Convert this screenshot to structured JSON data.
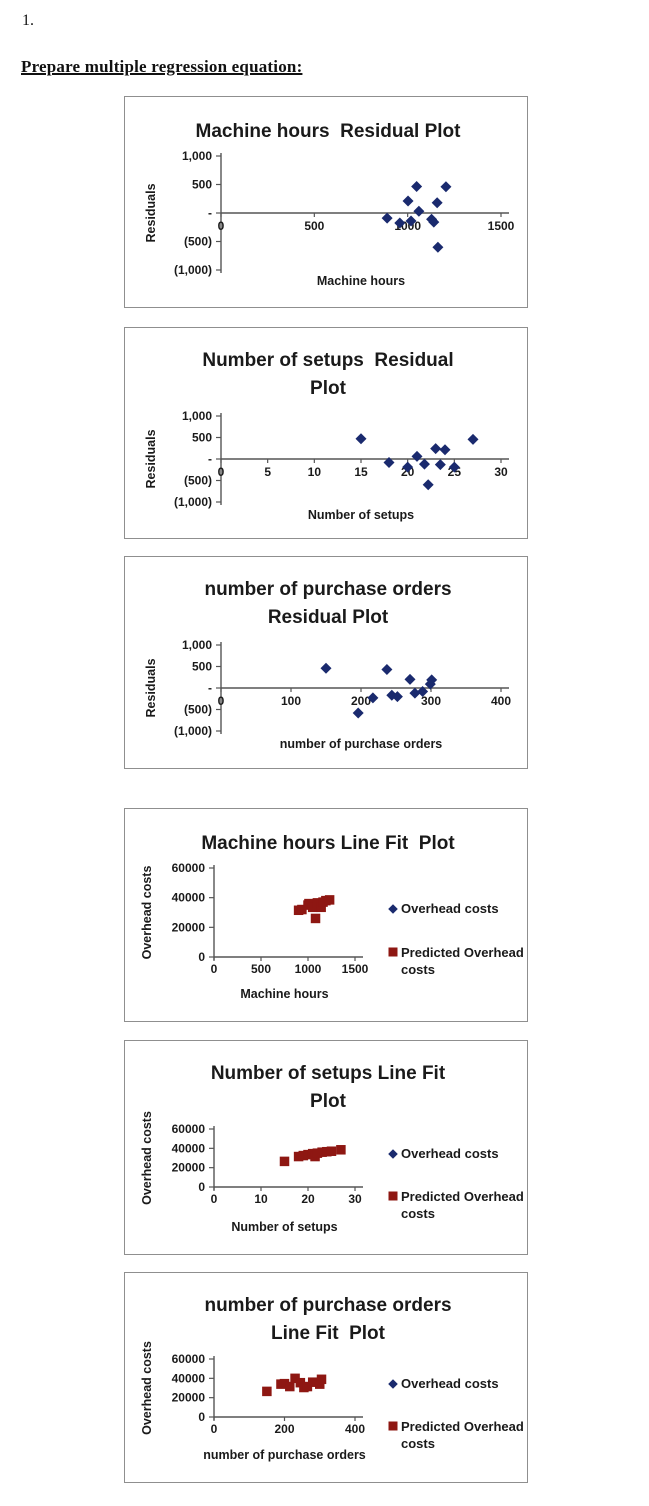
{
  "page": {
    "item_number": "1.",
    "heading": "Prepare multiple regression equation:"
  },
  "colors": {
    "overhead_marker": "#1A2A6E",
    "predicted_marker": "#8E1712",
    "axis": "#555555",
    "chart_border": "#8f8f8f",
    "text": "#1a1a1a"
  },
  "chart_data": [
    {
      "type": "scatter",
      "title_lines": [
        "Machine hours  Residual Plot"
      ],
      "xlabel": "Machine hours",
      "ylabel": "Residuals",
      "xlim": [
        0,
        1500
      ],
      "ylim": [
        -1000,
        1000
      ],
      "grid": false,
      "xticks": [
        {
          "v": 0,
          "label": "0"
        },
        {
          "v": 500,
          "label": "500"
        },
        {
          "v": 1000,
          "label": "1000"
        },
        {
          "v": 1500,
          "label": "1500"
        }
      ],
      "yticks": [
        {
          "v": 1000,
          "label": "1,000"
        },
        {
          "v": 500,
          "label": "500"
        },
        {
          "v": 0,
          "label": "-"
        },
        {
          "v": -500,
          "label": "(500)"
        },
        {
          "v": -1000,
          "label": "(1,000)"
        }
      ],
      "series": [
        {
          "name": "Residuals",
          "marker": "diamond",
          "color": "#1A2A6E",
          "points": [
            [
              890,
              -90
            ],
            [
              958,
              -175
            ],
            [
              1002,
              210
            ],
            [
              1018,
              -140
            ],
            [
              1048,
              465
            ],
            [
              1060,
              30
            ],
            [
              1128,
              -110
            ],
            [
              1140,
              -160
            ],
            [
              1158,
              180
            ],
            [
              1162,
              -600
            ],
            [
              1205,
              460
            ]
          ]
        }
      ],
      "legend": null
    },
    {
      "type": "scatter",
      "title_lines": [
        "Number of setups  Residual",
        "Plot"
      ],
      "xlabel": "Number of setups",
      "ylabel": "Residuals",
      "xlim": [
        0,
        30
      ],
      "ylim": [
        -1000,
        1000
      ],
      "grid": false,
      "xticks": [
        {
          "v": 0,
          "label": "0"
        },
        {
          "v": 5,
          "label": "5"
        },
        {
          "v": 10,
          "label": "10"
        },
        {
          "v": 15,
          "label": "15"
        },
        {
          "v": 20,
          "label": "20"
        },
        {
          "v": 25,
          "label": "25"
        },
        {
          "v": 30,
          "label": "30"
        }
      ],
      "yticks": [
        {
          "v": 1000,
          "label": "1,000"
        },
        {
          "v": 500,
          "label": "500"
        },
        {
          "v": 0,
          "label": "-"
        },
        {
          "v": -500,
          "label": "(500)"
        },
        {
          "v": -1000,
          "label": "(1,000)"
        }
      ],
      "series": [
        {
          "name": "Residuals",
          "marker": "diamond",
          "color": "#1A2A6E",
          "points": [
            [
              15,
              470
            ],
            [
              18,
              -80
            ],
            [
              20,
              -190
            ],
            [
              21,
              60
            ],
            [
              21.8,
              -120
            ],
            [
              22.2,
              -600
            ],
            [
              23,
              240
            ],
            [
              23.5,
              -130
            ],
            [
              24,
              215
            ],
            [
              25,
              -190
            ],
            [
              27,
              455
            ]
          ]
        }
      ],
      "legend": null
    },
    {
      "type": "scatter",
      "title_lines": [
        "number of purchase orders",
        "Residual Plot"
      ],
      "xlabel": "number of purchase orders",
      "ylabel": "Residuals",
      "xlim": [
        0,
        400
      ],
      "ylim": [
        -1000,
        1000
      ],
      "grid": false,
      "xticks": [
        {
          "v": 0,
          "label": "0"
        },
        {
          "v": 100,
          "label": "100"
        },
        {
          "v": 200,
          "label": "200"
        },
        {
          "v": 300,
          "label": "300"
        },
        {
          "v": 400,
          "label": "400"
        }
      ],
      "yticks": [
        {
          "v": 1000,
          "label": "1,000"
        },
        {
          "v": 500,
          "label": "500"
        },
        {
          "v": 0,
          "label": "-"
        },
        {
          "v": -500,
          "label": "(500)"
        },
        {
          "v": -1000,
          "label": "(1,000)"
        }
      ],
      "series": [
        {
          "name": "Residuals",
          "marker": "diamond",
          "color": "#1A2A6E",
          "points": [
            [
              150,
              460
            ],
            [
              196,
              -580
            ],
            [
              217,
              -230
            ],
            [
              237,
              430
            ],
            [
              244,
              -170
            ],
            [
              252,
              -200
            ],
            [
              270,
              200
            ],
            [
              277,
              -120
            ],
            [
              288,
              -80
            ],
            [
              299,
              90
            ],
            [
              301,
              190
            ]
          ]
        }
      ],
      "legend": null
    },
    {
      "type": "scatter",
      "title_lines": [
        "Machine hours Line Fit  Plot"
      ],
      "xlabel": "Machine hours",
      "ylabel": "Overhead costs",
      "xlim": [
        0,
        1500
      ],
      "ylim": [
        0,
        60000
      ],
      "grid": false,
      "xticks": [
        {
          "v": 0,
          "label": "0"
        },
        {
          "v": 500,
          "label": "500"
        },
        {
          "v": 1000,
          "label": "1000"
        },
        {
          "v": 1500,
          "label": "1500"
        }
      ],
      "yticks": [
        {
          "v": 60000,
          "label": "60000"
        },
        {
          "v": 40000,
          "label": "40000"
        },
        {
          "v": 20000,
          "label": "20000"
        },
        {
          "v": 0,
          "label": "0"
        }
      ],
      "series": [
        {
          "name": "Predicted Overhead costs",
          "marker": "square",
          "color": "#8E1712",
          "points": [
            [
              900,
              31500
            ],
            [
              935,
              32000
            ],
            [
              1000,
              35000
            ],
            [
              1010,
              36000
            ],
            [
              1050,
              33500
            ],
            [
              1080,
              26000
            ],
            [
              1100,
              36500
            ],
            [
              1140,
              33500
            ],
            [
              1160,
              37000
            ],
            [
              1190,
              38000
            ],
            [
              1230,
              38500
            ]
          ]
        }
      ],
      "legend": [
        {
          "label_lines": [
            "Overhead costs"
          ],
          "marker": "diamond",
          "color": "#1A2A6E"
        },
        {
          "label_lines": [
            "Predicted Overhead",
            "costs"
          ],
          "marker": "square",
          "color": "#8E1712"
        }
      ],
      "legend_position": "right"
    },
    {
      "type": "scatter",
      "title_lines": [
        "Number of setups Line Fit",
        "Plot"
      ],
      "xlabel": "Number of setups",
      "ylabel": "Overhead costs",
      "xlim": [
        0,
        30
      ],
      "ylim": [
        0,
        60000
      ],
      "grid": false,
      "xticks": [
        {
          "v": 0,
          "label": "0"
        },
        {
          "v": 10,
          "label": "10"
        },
        {
          "v": 20,
          "label": "20"
        },
        {
          "v": 30,
          "label": "30"
        }
      ],
      "yticks": [
        {
          "v": 60000,
          "label": "60000"
        },
        {
          "v": 40000,
          "label": "40000"
        },
        {
          "v": 20000,
          "label": "20000"
        },
        {
          "v": 0,
          "label": "0"
        }
      ],
      "series": [
        {
          "name": "Predicted Overhead costs",
          "marker": "square",
          "color": "#8E1712",
          "points": [
            [
              15,
              26500
            ],
            [
              18,
              31500
            ],
            [
              19,
              32500
            ],
            [
              20,
              33500
            ],
            [
              21,
              34500
            ],
            [
              21.5,
              31500
            ],
            [
              22,
              35000
            ],
            [
              23,
              36000
            ],
            [
              24,
              36500
            ],
            [
              25,
              37000
            ],
            [
              27,
              38500
            ]
          ]
        }
      ],
      "legend": [
        {
          "label_lines": [
            "Overhead costs"
          ],
          "marker": "diamond",
          "color": "#1A2A6E"
        },
        {
          "label_lines": [
            "Predicted Overhead",
            "costs"
          ],
          "marker": "square",
          "color": "#8E1712"
        }
      ],
      "legend_position": "right"
    },
    {
      "type": "scatter",
      "title_lines": [
        "number of purchase orders",
        "Line Fit  Plot"
      ],
      "xlabel": "number of purchase orders",
      "ylabel": "Overhead costs",
      "xlim": [
        0,
        400
      ],
      "ylim": [
        0,
        60000
      ],
      "grid": false,
      "xticks": [
        {
          "v": 0,
          "label": "0"
        },
        {
          "v": 200,
          "label": "200"
        },
        {
          "v": 400,
          "label": "400"
        }
      ],
      "yticks": [
        {
          "v": 60000,
          "label": "60000"
        },
        {
          "v": 40000,
          "label": "40000"
        },
        {
          "v": 20000,
          "label": "20000"
        },
        {
          "v": 0,
          "label": "0"
        }
      ],
      "series": [
        {
          "name": "Predicted Overhead costs",
          "marker": "square",
          "color": "#8E1712",
          "points": [
            [
              150,
              26500
            ],
            [
              190,
              34000
            ],
            [
              200,
              34500
            ],
            [
              215,
              31500
            ],
            [
              230,
              40000
            ],
            [
              245,
              35500
            ],
            [
              255,
              30500
            ],
            [
              265,
              31500
            ],
            [
              280,
              36000
            ],
            [
              300,
              34000
            ],
            [
              305,
              39000
            ]
          ]
        }
      ],
      "legend": [
        {
          "label_lines": [
            "Overhead costs"
          ],
          "marker": "diamond",
          "color": "#1A2A6E"
        },
        {
          "label_lines": [
            "Predicted Overhead",
            "costs"
          ],
          "marker": "square",
          "color": "#8E1712"
        }
      ],
      "legend_position": "right"
    }
  ]
}
